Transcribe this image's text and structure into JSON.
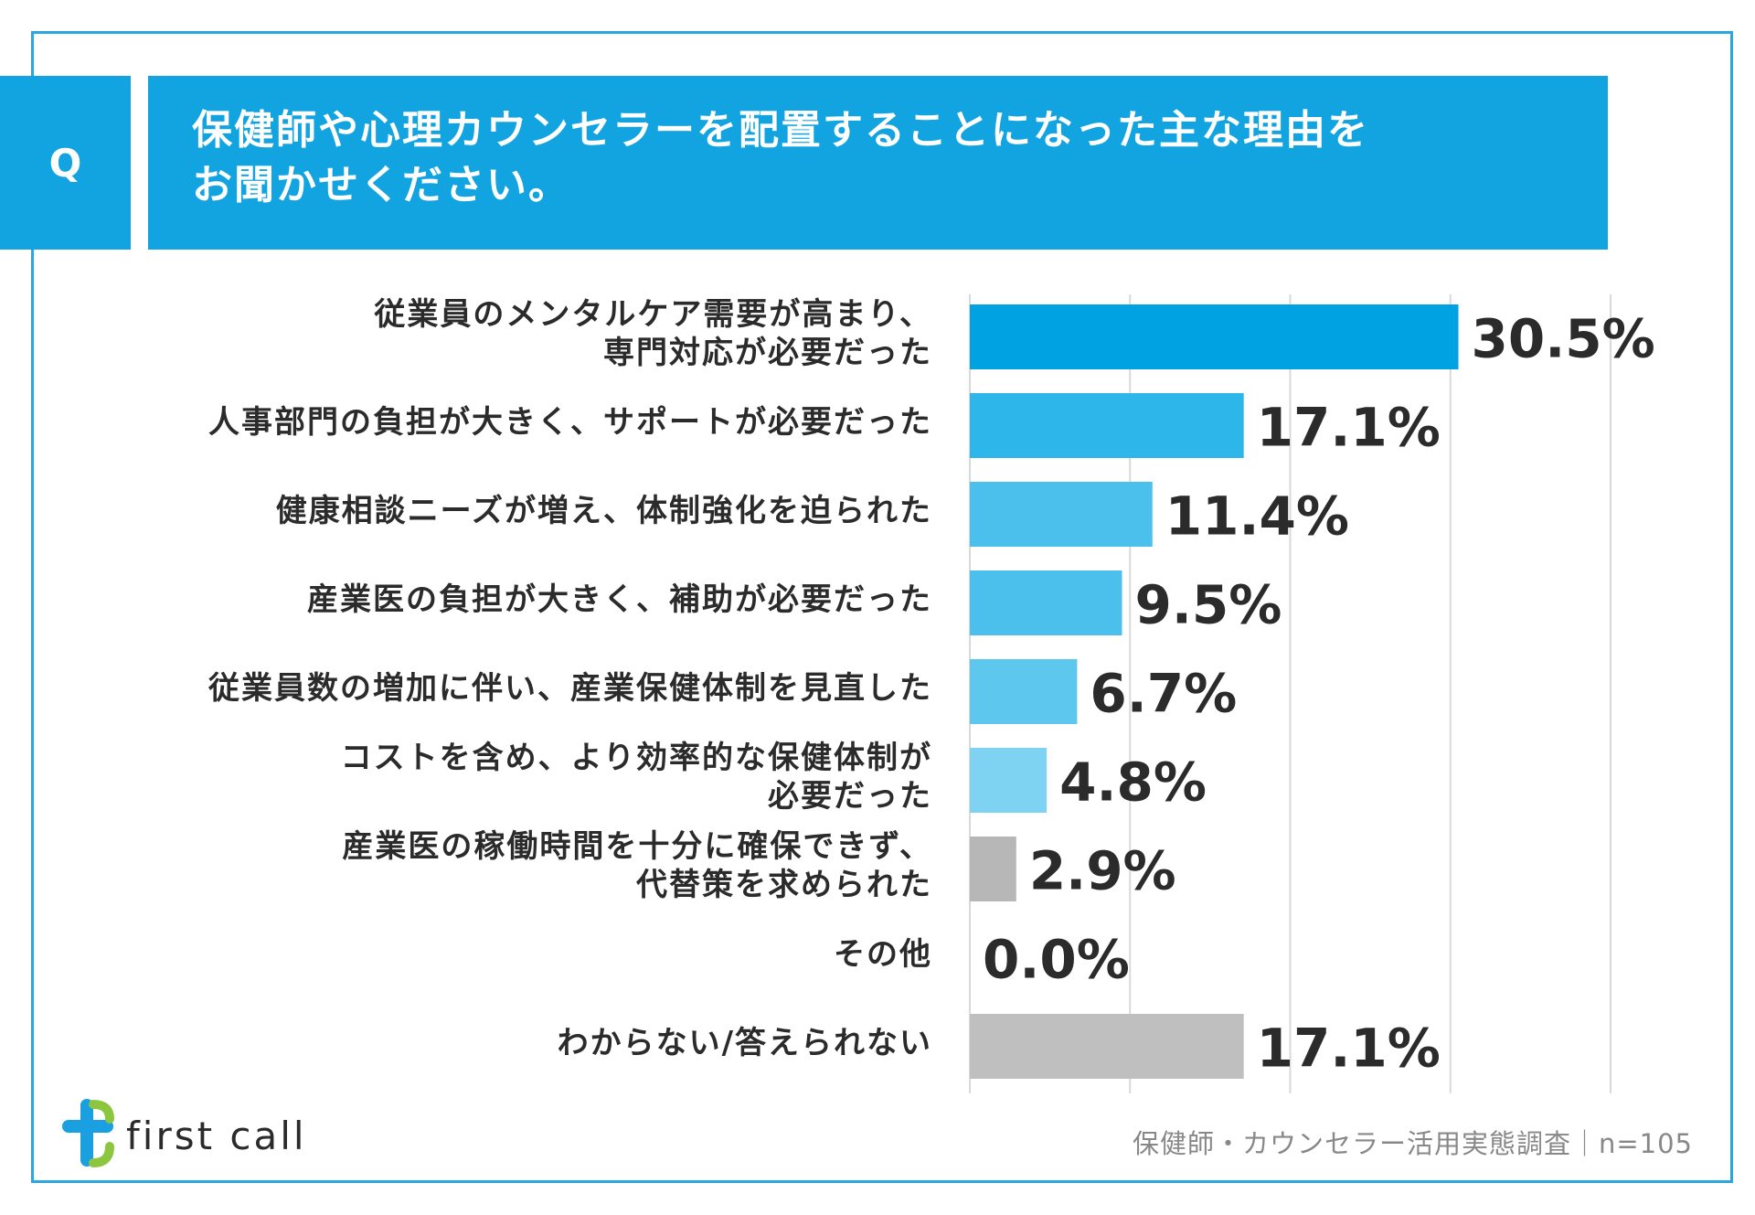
{
  "question": {
    "badge": "Q",
    "title_line1": "保健師や心理カウンセラーを配置することになった主な理由を",
    "title_line2": "お聞かせください。"
  },
  "chart_data": {
    "type": "bar",
    "orientation": "horizontal",
    "unit": "%",
    "xlim": [
      0,
      40
    ],
    "grid": true,
    "categories": [
      [
        "従業員のメンタルケア需要が高まり、",
        "専門対応が必要だった"
      ],
      [
        "人事部門の負担が大きく、サポートが必要だった"
      ],
      [
        "健康相談ニーズが増え、体制強化を迫られた"
      ],
      [
        "産業医の負担が大きく、補助が必要だった"
      ],
      [
        "従業員数の増加に伴い、産業保健体制を見直した"
      ],
      [
        "コストを含め、より効率的な保健体制が",
        "必要だった"
      ],
      [
        "産業医の稼働時間を十分に確保できず、",
        "代替策を求められた"
      ],
      [
        "その他"
      ],
      [
        "わからない/答えられない"
      ]
    ],
    "values": [
      30.5,
      17.1,
      11.4,
      9.5,
      6.7,
      4.8,
      2.9,
      0.0,
      17.1
    ],
    "value_labels": [
      "30.5%",
      "17.1%",
      "11.4%",
      "9.5%",
      "6.7%",
      "4.8%",
      "2.9%",
      "0.0%",
      "17.1%"
    ],
    "colors": [
      "#00a2e2",
      "#2db6ea",
      "#4cc0ec",
      "#4cc0ec",
      "#5ec7ee",
      "#7fd3f2",
      "#b7b7b7",
      "#b7b7b7",
      "#bfbfbf"
    ]
  },
  "brand": {
    "logo_text": "first call",
    "logo_colors": [
      "#1a9fe0",
      "#8cc63f"
    ]
  },
  "footer": {
    "source": "保健師・カウンセラー活用実態調査｜n=105"
  }
}
